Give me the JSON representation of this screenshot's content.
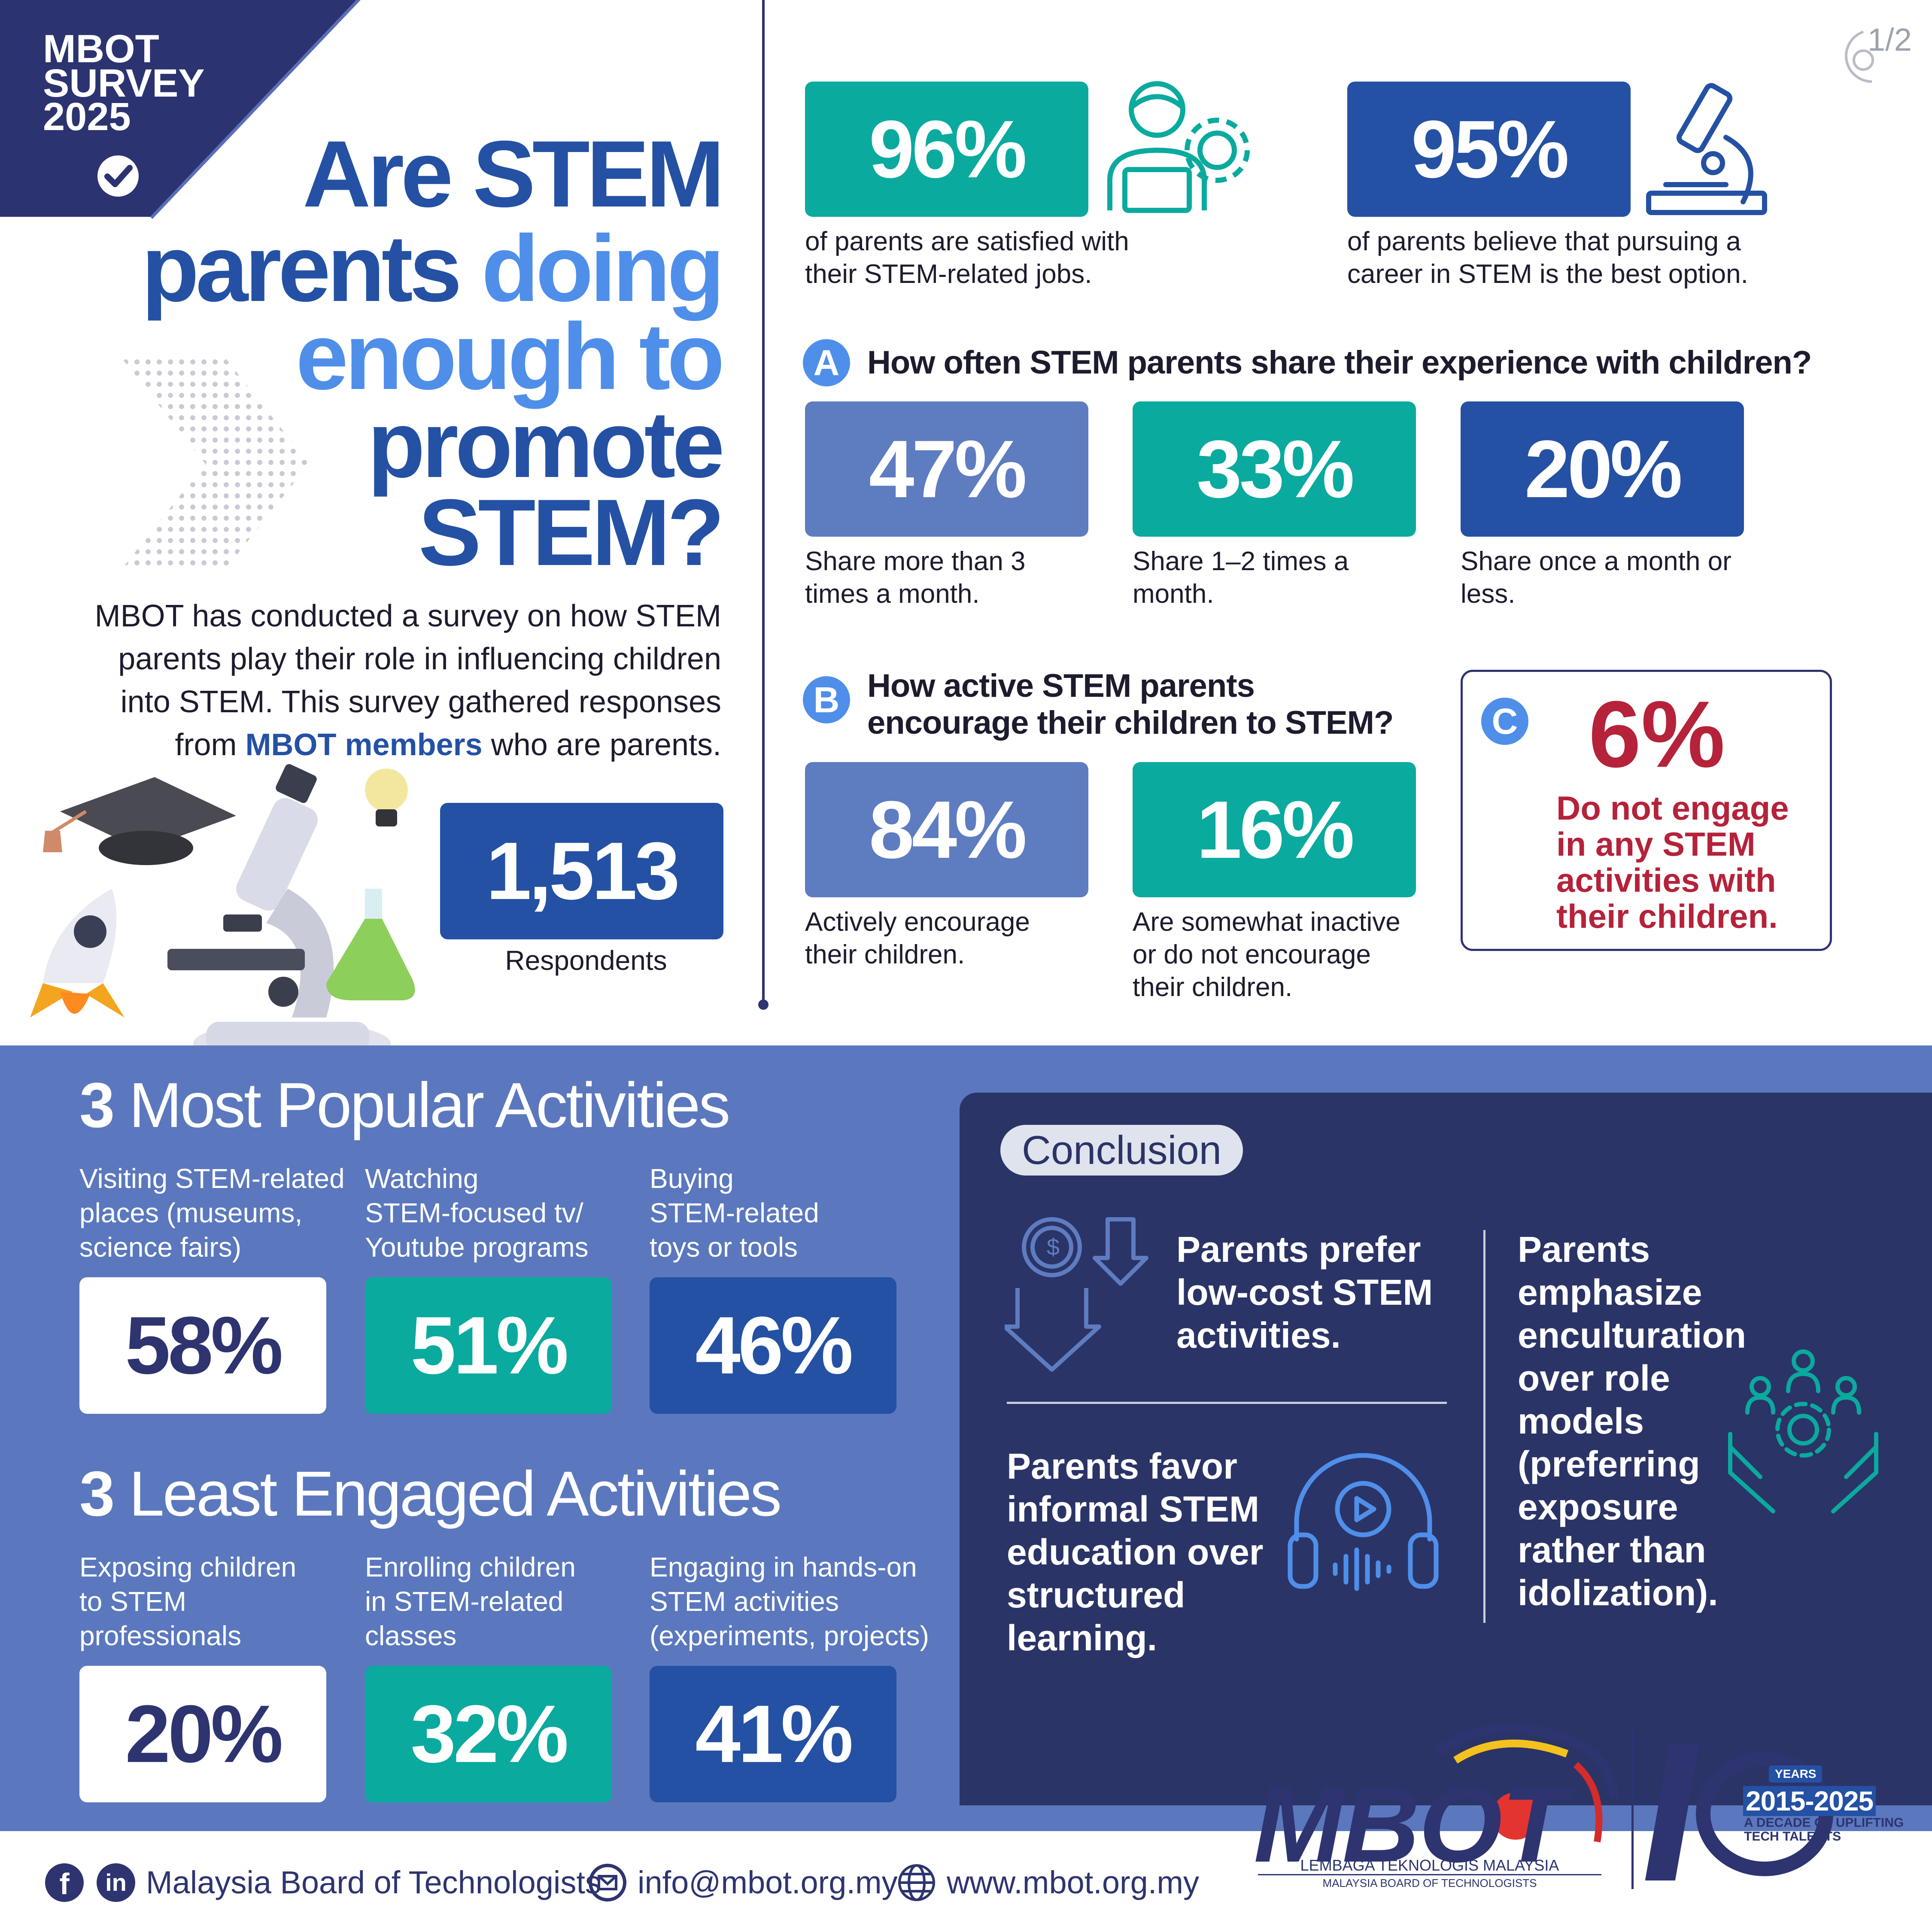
{
  "colors": {
    "navy": "#2d3470",
    "blue": "#2451a4",
    "teal": "#0aaa9e",
    "periwinkle": "#5e7cc0",
    "light_blue": "#4f8fea",
    "crimson": "#b5223a",
    "bottom_band": "#5b78be",
    "conclusion_panel": "#2b3467"
  },
  "badge": {
    "line1": "MBOT",
    "line2": "SURVEY",
    "line3": "2025",
    "icon": "check-circle-icon"
  },
  "page_indicator": "1/2",
  "headline": {
    "l1": "Are STEM",
    "l2a": "parents ",
    "l2b": "doing",
    "l3": "enough to",
    "l4": "promote",
    "l5": "STEM?"
  },
  "intro": {
    "l1": "MBOT has conducted a survey on how STEM",
    "l2": "parents play their role in influencing children",
    "l3": "into STEM. This survey gathered responses",
    "l4a": "from ",
    "l4b": "MBOT members",
    "l4c": " who are parents."
  },
  "respondents": {
    "value": "1,513",
    "label": "Respondents"
  },
  "top_stats": [
    {
      "value": "96%",
      "l1": "of parents are satisfied with",
      "l2": "their STEM-related jobs.",
      "icon": "person-laptop-gear-icon"
    },
    {
      "value": "95%",
      "l1": "of parents believe that pursuing a",
      "l2": "career in STEM is the best option.",
      "icon": "microscope-icon"
    }
  ],
  "section_a": {
    "letter": "A",
    "title": "How often STEM parents share their experience with children?",
    "items": [
      {
        "value": "47%",
        "l1": "Share more than 3",
        "l2": "times a month."
      },
      {
        "value": "33%",
        "l1": "Share 1–2 times a",
        "l2": "month."
      },
      {
        "value": "20%",
        "l1": "Share once a month or",
        "l2": "less."
      }
    ]
  },
  "section_b": {
    "letter": "B",
    "title_l1": "How active STEM parents",
    "title_l2": "encourage their children to STEM?",
    "items": [
      {
        "value": "84%",
        "l1": "Actively encourage",
        "l2": "their children.",
        "l3": ""
      },
      {
        "value": "16%",
        "l1": "Are somewhat inactive",
        "l2": "or do not encourage",
        "l3": "their children."
      }
    ]
  },
  "section_c": {
    "letter": "C",
    "value": "6%",
    "l1": "Do not engage",
    "l2": "in any STEM",
    "l3": "activities with",
    "l4": "their children."
  },
  "popular": {
    "num": "3",
    "title": " Most Popular Activities",
    "items": [
      {
        "l1": "Visiting STEM-related",
        "l2": "places (museums,",
        "l3": "science fairs)",
        "value": "58%"
      },
      {
        "l1": "Watching",
        "l2": "STEM-focused tv/",
        "l3": "Youtube programs",
        "value": "51%"
      },
      {
        "l1": "Buying",
        "l2": "STEM-related",
        "l3": "toys or tools",
        "value": "46%"
      }
    ]
  },
  "least": {
    "num": "3",
    "title": " Least Engaged Activities",
    "items": [
      {
        "l1": "Exposing children",
        "l2": "to STEM",
        "l3": "professionals",
        "value": "20%"
      },
      {
        "l1": "Enrolling children",
        "l2": "in STEM-related",
        "l3": "classes",
        "value": "32%"
      },
      {
        "l1": "Engaging in hands-on",
        "l2": "STEM activities",
        "l3": "(experiments, projects)",
        "value": "41%"
      }
    ]
  },
  "conclusion": {
    "label": "Conclusion",
    "c1": {
      "l1": "Parents prefer",
      "l2": "low-cost STEM",
      "l3": "activities.",
      "icon": "coin-arrow-down-icon"
    },
    "c2": {
      "l1": "Parents favor",
      "l2": "informal STEM",
      "l3": "education over",
      "l4": "structured",
      "l5": "learning.",
      "icon": "headphones-play-icon"
    },
    "c3": {
      "l1": "Parents",
      "l2": "emphasize",
      "l3": "enculturation",
      "l4": "over role",
      "l5": "models",
      "l6": "(preferring",
      "l7": "exposure",
      "l8": "rather than",
      "l9": "idolization).",
      "icon": "hands-people-gear-icon"
    }
  },
  "footer": {
    "org": "Malaysia Board of Technologists",
    "email": "info@mbot.org.my",
    "web": "www.mbot.org.my"
  },
  "logo": {
    "name": "MBOT",
    "sub1": "LEMBAGA TEKNOLOGIS MALAYSIA",
    "sub2": "MALAYSIA BOARD OF TECHNOLOGISTS",
    "anniv_years": "YEARS",
    "anniv_range": "2015-2025",
    "anniv_t1": "A DECADE OF UPLIFTING",
    "anniv_t2": "TECH TALENTS"
  }
}
